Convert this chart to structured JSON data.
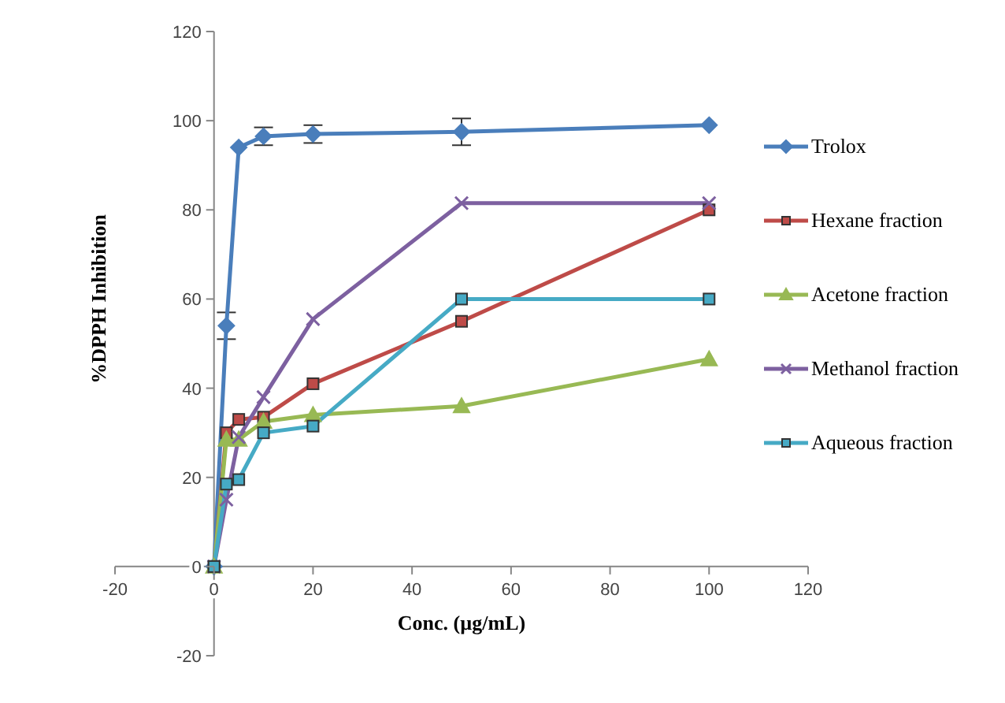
{
  "chart_data": {
    "type": "line",
    "xlabel": "Conc. (µg/mL)",
    "ylabel": "%DPPH Inhibition",
    "x": [
      0,
      2.5,
      5,
      10,
      20,
      50,
      100
    ],
    "series": [
      {
        "name": "Trolox",
        "color": "#4a7ebb",
        "marker": "diamond",
        "values": [
          0,
          54,
          94,
          96.5,
          97,
          97.5,
          99
        ],
        "errors": [
          null,
          3,
          null,
          2,
          2,
          3,
          null
        ]
      },
      {
        "name": "Hexane fraction",
        "color": "#be4b48",
        "marker": "square",
        "values": [
          0,
          30,
          33,
          33.5,
          41,
          55,
          80
        ]
      },
      {
        "name": "Acetone fraction",
        "color": "#98b954",
        "marker": "triangle",
        "values": [
          0,
          28.5,
          28.5,
          32.5,
          34,
          36,
          46.5
        ]
      },
      {
        "name": "Methanol fraction",
        "color": "#7d60a0",
        "marker": "cross",
        "values": [
          0,
          15,
          29,
          38,
          55.5,
          81.5,
          81.5
        ]
      },
      {
        "name": "Aqueous fraction",
        "color": "#46aac5",
        "marker": "square",
        "values": [
          0,
          18.5,
          19.5,
          30,
          31.5,
          60,
          60
        ]
      }
    ],
    "xlim": [
      -20,
      120
    ],
    "xticks": [
      -20,
      0,
      20,
      40,
      60,
      80,
      100,
      120
    ],
    "ylim": [
      -20,
      120
    ],
    "yticks": [
      -20,
      0,
      20,
      40,
      60,
      80,
      100,
      120
    ],
    "grid": false,
    "legend": "right"
  }
}
